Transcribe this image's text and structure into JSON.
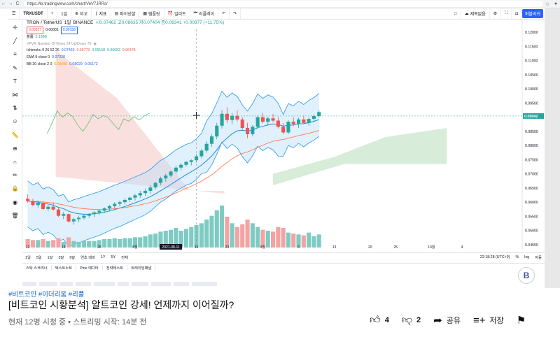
{
  "browser": {
    "url": "https://kr.tradingview.com/chart/VeV7JRRs/",
    "nav_back": "←",
    "nav_forward": "→",
    "nav_reload": "C"
  },
  "toolbar": {
    "symbol": "TRXUSDT",
    "interval": "1일",
    "compare": "비교",
    "indicators": "지표",
    "financials": "파이낸셜",
    "templates": "템플릿",
    "alert": "얼러트",
    "replay": "리플레이",
    "unnamed": "제목없음",
    "publish": "퍼블리쉬"
  },
  "legend": {
    "pair": "TRON / TetherUS",
    "interval": "1일",
    "exchange": "BINANCE",
    "ohlc": "시0.07462 고0.08635 저0.07404 종0.08341 +0.00877 (+11.75%)",
    "sell": "0.09157",
    "spread": "0.00001",
    "buy": "0.09158",
    "volume_label": "볼륨",
    "volume_val": "3.198B",
    "vpvr": "VPVR Number Of Rows 24 Up/Down 70",
    "ichimoku": "Ichimoku 9 26 52 26",
    "ichimoku_vals": [
      "0.07463",
      "0.06773",
      "0.09158",
      "0.06652",
      "0.06478"
    ],
    "ema": "EMA 9 close 0",
    "ema_val": "0.07328",
    "bb": "BB 20 close 2 0",
    "bb_vals": [
      "0.06600",
      "0.08029",
      "0.05172"
    ]
  },
  "chart_data": {
    "type": "candlestick",
    "symbol": "TRXUSDT",
    "ylim": [
      0.044,
      0.121
    ],
    "y_ticks": [
      "0.12000",
      "0.11500",
      "0.11000",
      "0.10500",
      "0.10000",
      "0.09500",
      "0.09000",
      "0.08500",
      "0.08000",
      "0.07500",
      "0.07000",
      "0.06500",
      "0.06000",
      "0.05500",
      "0.05000",
      "0.04500"
    ],
    "x_ticks": [
      "12",
      "19",
      "26",
      "8월",
      "2021-08-11",
      "16",
      "23",
      "9월",
      "6",
      "13",
      "20",
      "25",
      "10월",
      "4"
    ],
    "last_price": "0.09042",
    "candles": [
      [
        0.0612,
        0.0628,
        0.0598,
        0.0604
      ],
      [
        0.0604,
        0.0612,
        0.0585,
        0.059
      ],
      [
        0.059,
        0.0606,
        0.058,
        0.0598
      ],
      [
        0.0598,
        0.0604,
        0.0572,
        0.0576
      ],
      [
        0.0576,
        0.059,
        0.0568,
        0.0584
      ],
      [
        0.0584,
        0.06,
        0.057,
        0.0574
      ],
      [
        0.0574,
        0.058,
        0.0548,
        0.0552
      ],
      [
        0.0552,
        0.0566,
        0.054,
        0.0558
      ],
      [
        0.0558,
        0.056,
        0.0528,
        0.0532
      ],
      [
        0.0532,
        0.0545,
        0.052,
        0.054
      ],
      [
        0.054,
        0.0552,
        0.053,
        0.0545
      ],
      [
        0.0545,
        0.0556,
        0.0538,
        0.0552
      ],
      [
        0.0552,
        0.0562,
        0.0544,
        0.0558
      ],
      [
        0.0558,
        0.0568,
        0.0548,
        0.0564
      ],
      [
        0.0564,
        0.0575,
        0.0555,
        0.057
      ],
      [
        0.057,
        0.0582,
        0.0562,
        0.0578
      ],
      [
        0.0578,
        0.059,
        0.057,
        0.0586
      ],
      [
        0.0586,
        0.06,
        0.0578,
        0.0594
      ],
      [
        0.0594,
        0.0606,
        0.0585,
        0.06
      ],
      [
        0.06,
        0.0614,
        0.0592,
        0.0608
      ],
      [
        0.0608,
        0.062,
        0.06,
        0.0616
      ],
      [
        0.0616,
        0.063,
        0.0606,
        0.0624
      ],
      [
        0.0624,
        0.064,
        0.0615,
        0.0632
      ],
      [
        0.0632,
        0.0648,
        0.0622,
        0.064
      ],
      [
        0.064,
        0.066,
        0.063,
        0.0652
      ],
      [
        0.0652,
        0.0672,
        0.0645,
        0.0668
      ],
      [
        0.0668,
        0.069,
        0.066,
        0.0684
      ],
      [
        0.0684,
        0.07,
        0.0672,
        0.0694
      ],
      [
        0.0694,
        0.0712,
        0.0688,
        0.0708
      ],
      [
        0.0708,
        0.073,
        0.07,
        0.0722
      ],
      [
        0.0722,
        0.0738,
        0.0712,
        0.0732
      ],
      [
        0.0732,
        0.0746,
        0.0726,
        0.0742
      ],
      [
        0.0742,
        0.0752,
        0.073,
        0.0748
      ],
      [
        0.0748,
        0.077,
        0.074,
        0.0762
      ],
      [
        0.0762,
        0.0788,
        0.0755,
        0.0782
      ],
      [
        0.0782,
        0.0816,
        0.0775,
        0.0806
      ],
      [
        0.0806,
        0.084,
        0.0796,
        0.0832
      ],
      [
        0.0832,
        0.088,
        0.0822,
        0.087
      ],
      [
        0.087,
        0.0925,
        0.086,
        0.0912
      ],
      [
        0.0912,
        0.0935,
        0.088,
        0.089
      ],
      [
        0.089,
        0.0915,
        0.0875,
        0.0905
      ],
      [
        0.0905,
        0.0925,
        0.0885,
        0.0892
      ],
      [
        0.0892,
        0.09,
        0.0856,
        0.0862
      ],
      [
        0.0862,
        0.088,
        0.0826,
        0.084
      ],
      [
        0.084,
        0.0872,
        0.0832,
        0.0866
      ],
      [
        0.0866,
        0.0905,
        0.086,
        0.09
      ],
      [
        0.09,
        0.0915,
        0.0878,
        0.0884
      ],
      [
        0.0884,
        0.0902,
        0.087,
        0.0896
      ],
      [
        0.0896,
        0.0912,
        0.0882,
        0.0888
      ],
      [
        0.0888,
        0.09,
        0.086,
        0.0866
      ],
      [
        0.0866,
        0.088,
        0.084,
        0.0846
      ],
      [
        0.0846,
        0.089,
        0.084,
        0.0884
      ],
      [
        0.0884,
        0.09,
        0.0868,
        0.0876
      ],
      [
        0.0876,
        0.0898,
        0.0862,
        0.0892
      ],
      [
        0.0892,
        0.0905,
        0.0876,
        0.088
      ],
      [
        0.088,
        0.0898,
        0.087,
        0.0894
      ],
      [
        0.0894,
        0.091,
        0.0885,
        0.0904
      ],
      [
        0.0904,
        0.0925,
        0.0898,
        0.0918
      ]
    ],
    "volumes": [
      9,
      8,
      8,
      9,
      7,
      8,
      10,
      6,
      11,
      7,
      6,
      7,
      7,
      7,
      8,
      9,
      9,
      10,
      9,
      10,
      10,
      11,
      11,
      12,
      14,
      15,
      17,
      18,
      19,
      21,
      18,
      20,
      22,
      24,
      26,
      30,
      34,
      40,
      45,
      33,
      26,
      22,
      25,
      30,
      26,
      22,
      19,
      18,
      17,
      22,
      21,
      16,
      15,
      14,
      13,
      16,
      12,
      14
    ],
    "series": [
      {
        "name": "EMA 9 close 0"
      },
      {
        "name": "BB 20 close 2 0"
      },
      {
        "name": "Ichimoku 9 26 52 26"
      }
    ]
  },
  "bottom": {
    "ranges": [
      "1일",
      "5일",
      "1달",
      "3달",
      "6달",
      "연초 대비",
      "1Y",
      "5Y",
      "전체"
    ],
    "clock": "22:18:28 (UTC+9)",
    "pct": "%",
    "log": "log",
    "auto": "자동"
  },
  "tabs": [
    "스탁 스크리너",
    "텍스트노트",
    "Pine 에디터",
    "전략테스트",
    "트레이딩패널"
  ],
  "watermark_text": "B",
  "video": {
    "tags": "#비트코인 #이더리움 #리플",
    "title": "[비트코인 시황분석] 알트코인 강세! 언제까지 이어질까?",
    "meta": "현재 12명 시청 중 • 스트리밍 시작: 14분 전",
    "likes": "4",
    "dislikes": "2",
    "share": "공유",
    "save": "저장"
  }
}
